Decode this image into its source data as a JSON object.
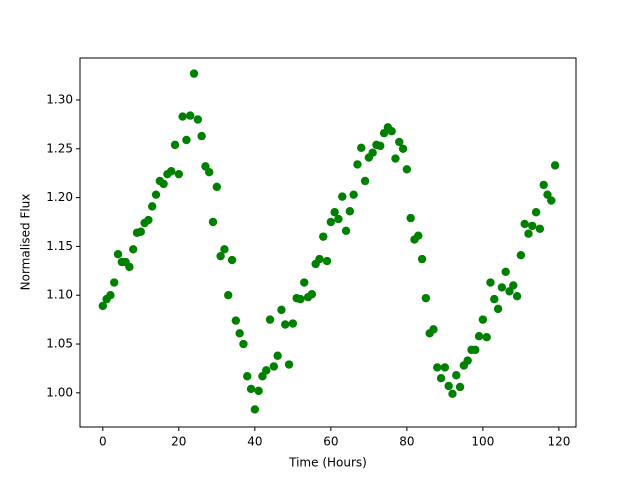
{
  "chart_data": {
    "type": "scatter",
    "xlabel": "Time (Hours)",
    "ylabel": "Normalised Flux",
    "color": "#008000",
    "x": [
      0,
      1,
      2,
      3,
      4,
      5,
      6,
      7,
      8,
      9,
      10,
      11,
      12,
      13,
      14,
      15,
      16,
      17,
      18,
      19,
      20,
      21,
      22,
      23,
      24,
      25,
      26,
      27,
      28,
      29,
      30,
      31,
      32,
      33,
      34,
      35,
      36,
      37,
      38,
      39,
      40,
      41,
      42,
      43,
      44,
      45,
      46,
      47,
      48,
      49,
      50,
      51,
      52,
      53,
      54,
      55,
      56,
      57,
      58,
      59,
      60,
      61,
      62,
      63,
      64,
      65,
      66,
      67,
      68,
      69,
      70,
      71,
      72,
      73,
      74,
      75,
      76,
      77,
      78,
      79,
      80,
      81,
      82,
      83,
      84,
      85,
      86,
      87,
      88,
      89,
      90,
      91,
      92,
      93,
      94,
      95,
      96,
      97,
      98,
      99,
      100,
      101,
      102,
      103,
      104,
      105,
      106,
      107,
      108,
      109,
      110,
      111,
      112,
      113,
      114,
      115,
      116,
      117,
      118,
      119
    ],
    "values": [
      1.089,
      1.096,
      1.1,
      1.113,
      1.142,
      1.134,
      1.134,
      1.129,
      1.147,
      1.164,
      1.165,
      1.174,
      1.177,
      1.191,
      1.203,
      1.217,
      1.214,
      1.224,
      1.227,
      1.254,
      1.224,
      1.283,
      1.259,
      1.284,
      1.327,
      1.28,
      1.263,
      1.232,
      1.226,
      1.175,
      1.211,
      1.14,
      1.147,
      1.1,
      1.136,
      1.074,
      1.061,
      1.05,
      1.017,
      1.004,
      0.983,
      1.002,
      1.017,
      1.023,
      1.075,
      1.027,
      1.038,
      1.085,
      1.07,
      1.029,
      1.071,
      1.097,
      1.096,
      1.113,
      1.098,
      1.101,
      1.132,
      1.137,
      1.16,
      1.135,
      1.175,
      1.185,
      1.178,
      1.201,
      1.166,
      1.186,
      1.203,
      1.234,
      1.251,
      1.217,
      1.241,
      1.246,
      1.254,
      1.253,
      1.266,
      1.272,
      1.268,
      1.24,
      1.257,
      1.25,
      1.229,
      1.179,
      1.157,
      1.161,
      1.137,
      1.097,
      1.061,
      1.065,
      1.026,
      1.015,
      1.026,
      1.007,
      0.999,
      1.018,
      1.006,
      1.028,
      1.033,
      1.044,
      1.044,
      1.058,
      1.075,
      1.057,
      1.113,
      1.096,
      1.086,
      1.108,
      1.124,
      1.104,
      1.11,
      1.099,
      1.141,
      1.173,
      1.163,
      1.171,
      1.185,
      1.168,
      1.213,
      1.203,
      1.197,
      1.233
    ],
    "xlim": [
      -6,
      124.5
    ],
    "xticks": [
      0,
      20,
      40,
      60,
      80,
      100,
      120
    ],
    "ylim": [
      0.965,
      1.343
    ],
    "yticks": [
      {
        "value": 1,
        "label": "1.00"
      },
      1.05,
      {
        "value": 1.1,
        "label": "1.10"
      },
      1.15,
      {
        "value": 1.2,
        "label": "1.20"
      },
      1.25,
      {
        "value": 1.3,
        "label": "1.30"
      }
    ]
  }
}
